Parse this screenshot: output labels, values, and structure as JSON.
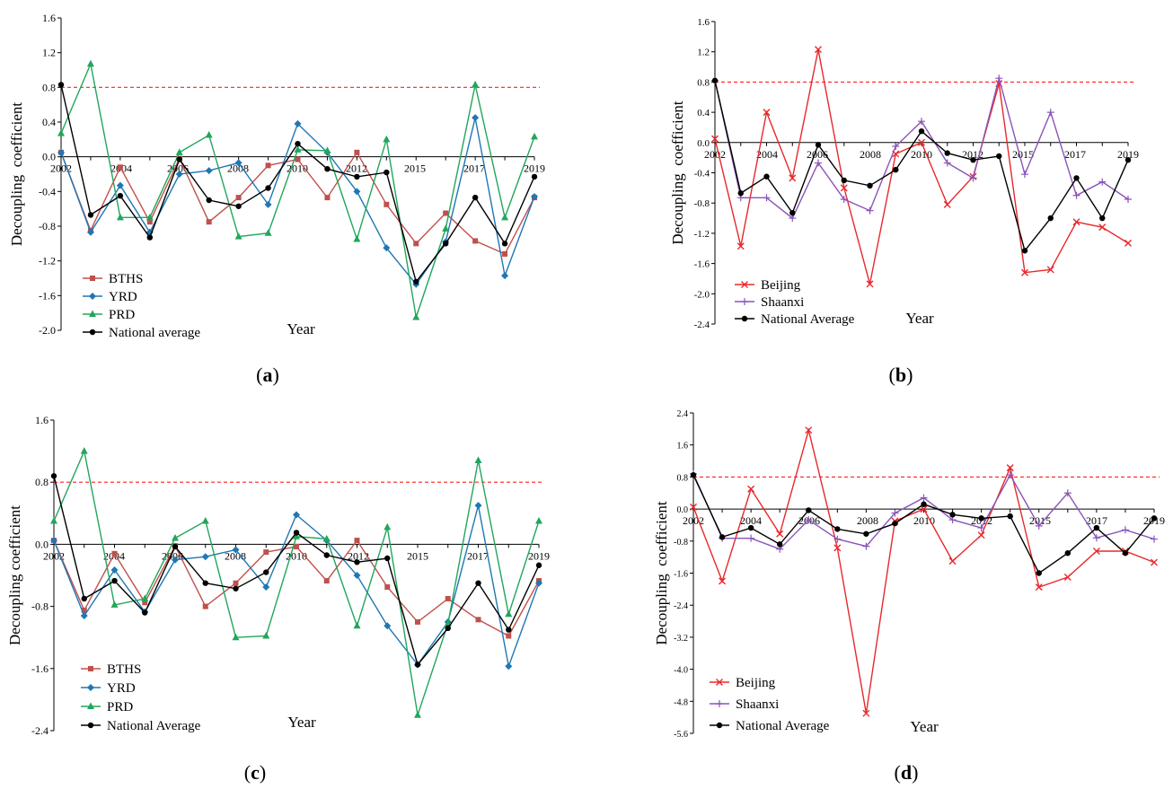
{
  "chart_data": [
    {
      "panel_label": "(a)",
      "type": "line",
      "categories": [
        "2002",
        "2003",
        "2004",
        "2005",
        "2006",
        "2007",
        "2008",
        "2009",
        "2010",
        "2011",
        "2012",
        "2013",
        "2015",
        "2016",
        "2017",
        "2018",
        "2019"
      ],
      "tick_labels": [
        "2002",
        "2004",
        "2006",
        "2008",
        "2010",
        "2012",
        "2015",
        "2017",
        "2019"
      ],
      "ylabel": "Decoupling  coefficient",
      "xlabel": "Year",
      "ylim": [
        -2.0,
        1.6
      ],
      "yticks": [
        "1.6",
        "1.2",
        "0.8",
        "0.4",
        "0.0",
        "-0.4",
        "-0.8",
        "-1.2",
        "-1.6",
        "-2.0"
      ],
      "threshold": 0.8,
      "legend": "bottom-left",
      "series": [
        {
          "name": "BTHS",
          "color": "#c0504d",
          "marker": "square",
          "values": [
            0.05,
            -0.85,
            -0.12,
            -0.75,
            -0.02,
            -0.75,
            -0.47,
            -0.1,
            -0.03,
            -0.47,
            0.05,
            -0.55,
            -1.0,
            -0.65,
            -0.97,
            -1.12,
            -0.47
          ]
        },
        {
          "name": "YRD",
          "color": "#1f77b4",
          "marker": "diamond",
          "values": [
            0.05,
            -0.87,
            -0.33,
            -0.87,
            -0.2,
            -0.16,
            -0.07,
            -0.55,
            0.38,
            0.05,
            -0.4,
            -1.05,
            -1.47,
            -0.98,
            0.45,
            -1.37,
            -0.46
          ]
        },
        {
          "name": "PRD",
          "color": "#21a65b",
          "marker": "triangle",
          "values": [
            0.27,
            1.07,
            -0.7,
            -0.7,
            0.05,
            0.25,
            -0.92,
            -0.88,
            0.08,
            0.07,
            -0.95,
            0.2,
            -1.85,
            -0.83,
            0.83,
            -0.7,
            0.23
          ]
        },
        {
          "name": "National average",
          "color": "#000000",
          "marker": "circle",
          "values": [
            0.83,
            -0.67,
            -0.45,
            -0.93,
            -0.03,
            -0.5,
            -0.57,
            -0.36,
            0.15,
            -0.14,
            -0.23,
            -0.18,
            -1.44,
            -1.0,
            -0.47,
            -1.0,
            -0.23
          ]
        }
      ]
    },
    {
      "panel_label": "(b)",
      "type": "line",
      "categories": [
        "2002",
        "2003",
        "2004",
        "2005",
        "2006",
        "2007",
        "2008",
        "2009",
        "2010",
        "2011",
        "2012",
        "2013",
        "2015",
        "2016",
        "2017",
        "2018",
        "2019"
      ],
      "tick_labels": [
        "2002",
        "2004",
        "2006",
        "2008",
        "2010",
        "2012",
        "2015",
        "2017",
        "2019"
      ],
      "ylabel": "Decoupling  coefficient",
      "xlabel": "Year",
      "ylim": [
        -2.4,
        1.6
      ],
      "yticks": [
        "1.6",
        "1.2",
        "0.8",
        "0.4",
        "0.0",
        "-0.4",
        "-0.8",
        "-1.2",
        "-1.6",
        "-2.0",
        "-2.4"
      ],
      "threshold": 0.8,
      "legend": "bottom-left",
      "series": [
        {
          "name": "Beijing",
          "color": "#e8282b",
          "marker": "x",
          "values": [
            0.05,
            -1.37,
            0.4,
            -0.47,
            1.23,
            -0.6,
            -1.87,
            -0.15,
            0.0,
            -0.82,
            -0.45,
            0.78,
            -1.72,
            -1.68,
            -1.05,
            -1.12,
            -1.33
          ]
        },
        {
          "name": "Shaanxi",
          "color": "#8a54b8",
          "marker": "plus",
          "values": [
            0.82,
            -0.73,
            -0.73,
            -1.0,
            -0.27,
            -0.75,
            -0.9,
            -0.05,
            0.28,
            -0.27,
            -0.47,
            0.85,
            -0.42,
            0.4,
            -0.7,
            -0.52,
            -0.75
          ]
        },
        {
          "name": "National Average",
          "color": "#000000",
          "marker": "circle",
          "values": [
            0.82,
            -0.67,
            -0.45,
            -0.93,
            -0.03,
            -0.5,
            -0.57,
            -0.36,
            0.15,
            -0.14,
            -0.23,
            -0.18,
            -1.43,
            -1.0,
            -0.47,
            -1.0,
            -0.23
          ]
        }
      ]
    },
    {
      "panel_label": "(c)",
      "type": "line",
      "categories": [
        "2002",
        "2003",
        "2004",
        "2005",
        "2006",
        "2007",
        "2008",
        "2009",
        "2010",
        "2011",
        "2012",
        "2013",
        "2015",
        "2016",
        "2017",
        "2018",
        "2019"
      ],
      "tick_labels": [
        "2002",
        "2004",
        "2006",
        "2008",
        "2010",
        "2012",
        "2015",
        "2017",
        "2019"
      ],
      "ylabel": "Decoupling coefficient",
      "xlabel": "Year",
      "ylim": [
        -2.4,
        1.6
      ],
      "yticks": [
        "1.6",
        "0.8",
        "0.0",
        "-0.8",
        "-1.6",
        "-2.4"
      ],
      "threshold": 0.8,
      "legend": "bottom-left",
      "series": [
        {
          "name": "BTHS",
          "color": "#c0504d",
          "marker": "square",
          "values": [
            0.05,
            -0.85,
            -0.12,
            -0.75,
            -0.02,
            -0.8,
            -0.5,
            -0.1,
            -0.03,
            -0.47,
            0.05,
            -0.55,
            -1.0,
            -0.7,
            -0.97,
            -1.18,
            -0.47
          ]
        },
        {
          "name": "YRD",
          "color": "#1f77b4",
          "marker": "diamond",
          "values": [
            0.05,
            -0.92,
            -0.33,
            -0.87,
            -0.2,
            -0.16,
            -0.07,
            -0.55,
            0.38,
            0.05,
            -0.4,
            -1.05,
            -1.55,
            -1.0,
            0.5,
            -1.57,
            -0.5
          ]
        },
        {
          "name": "PRD",
          "color": "#21a65b",
          "marker": "triangle",
          "values": [
            0.3,
            1.2,
            -0.78,
            -0.7,
            0.08,
            0.3,
            -1.2,
            -1.18,
            0.1,
            0.07,
            -1.05,
            0.22,
            -2.2,
            -1.02,
            1.08,
            -0.9,
            0.3
          ]
        },
        {
          "name": "National Average",
          "color": "#000000",
          "marker": "circle",
          "values": [
            0.88,
            -0.7,
            -0.47,
            -0.88,
            -0.03,
            -0.5,
            -0.57,
            -0.36,
            0.15,
            -0.14,
            -0.23,
            -0.18,
            -1.55,
            -1.08,
            -0.5,
            -1.1,
            -0.27
          ]
        }
      ]
    },
    {
      "panel_label": "(d)",
      "type": "line",
      "categories": [
        "2002",
        "2003",
        "2004",
        "2005",
        "2006",
        "2007",
        "2008",
        "2009",
        "2010",
        "2011",
        "2012",
        "2013",
        "2015",
        "2016",
        "2017",
        "2018",
        "2019"
      ],
      "tick_labels": [
        "2002",
        "2004",
        "2006",
        "2008",
        "2010",
        "2012",
        "2015",
        "2017",
        "2019"
      ],
      "ylabel": "Decoupling  coefficient",
      "xlabel": "Year",
      "ylim": [
        -5.6,
        2.4
      ],
      "yticks": [
        "2.4",
        "1.6",
        "0.8",
        "0.0",
        "-0.8",
        "-1.6",
        "-2.4",
        "-3.2",
        "-4.0",
        "-4.8",
        "-5.6"
      ],
      "threshold": 0.8,
      "legend": "bottom-left",
      "series": [
        {
          "name": "Beijing",
          "color": "#e8282b",
          "marker": "x",
          "values": [
            0.05,
            -1.8,
            0.5,
            -0.62,
            1.97,
            -0.97,
            -5.1,
            -0.3,
            0.0,
            -1.3,
            -0.65,
            1.03,
            -1.95,
            -1.7,
            -1.05,
            -1.05,
            -1.33
          ]
        },
        {
          "name": "Shaanxi",
          "color": "#8a54b8",
          "marker": "plus",
          "values": [
            0.88,
            -0.73,
            -0.73,
            -1.0,
            -0.27,
            -0.75,
            -0.93,
            -0.1,
            0.28,
            -0.27,
            -0.47,
            0.85,
            -0.42,
            0.4,
            -0.72,
            -0.52,
            -0.75
          ]
        },
        {
          "name": "National Average",
          "color": "#000000",
          "marker": "circle",
          "values": [
            0.85,
            -0.7,
            -0.47,
            -0.88,
            -0.03,
            -0.5,
            -0.62,
            -0.36,
            0.12,
            -0.14,
            -0.23,
            -0.18,
            -1.6,
            -1.1,
            -0.47,
            -1.1,
            -0.23
          ]
        }
      ]
    }
  ]
}
